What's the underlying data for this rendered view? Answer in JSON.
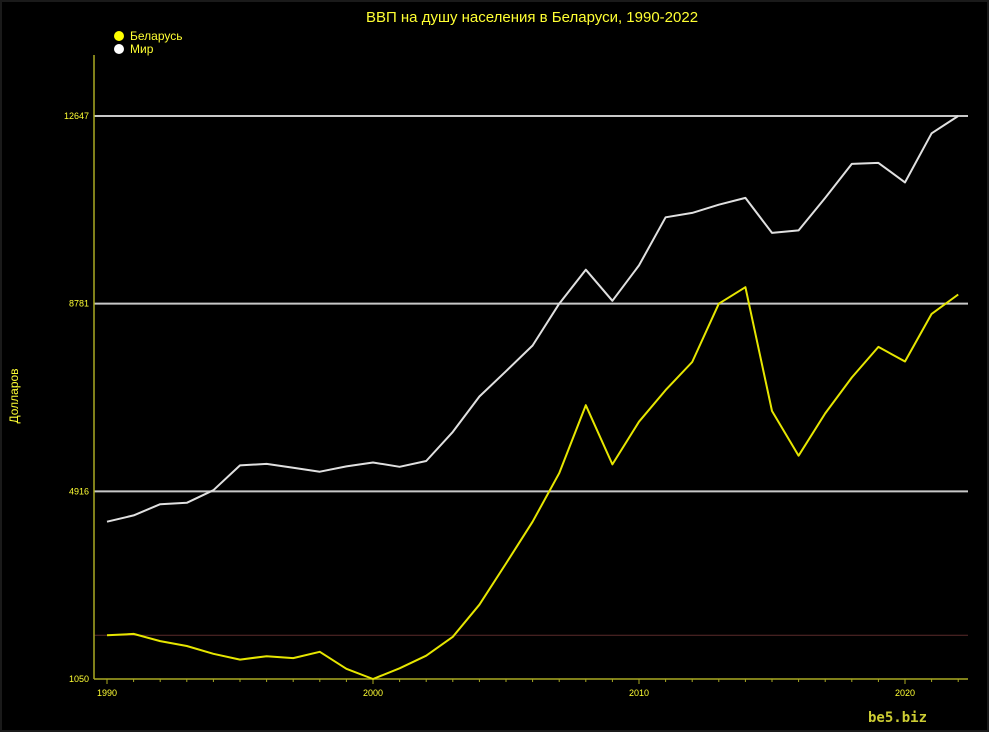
{
  "chart_data": {
    "type": "line",
    "title": "ВВП на душу населения в Беларуси, 1990-2022",
    "ylabel": "Долларов",
    "xlabel": "",
    "ylim": [
      1050,
      13900
    ],
    "xlim": [
      1990,
      2022.5
    ],
    "y_ticks": [
      1050,
      4916,
      8781,
      12647
    ],
    "x_ticks": [
      1990,
      2000,
      2010,
      2020
    ],
    "reference_line": 1950,
    "x": [
      1990,
      1991,
      1992,
      1993,
      1994,
      1995,
      1996,
      1997,
      1998,
      1999,
      2000,
      2001,
      2002,
      2003,
      2004,
      2005,
      2006,
      2007,
      2008,
      2009,
      2010,
      2011,
      2012,
      2013,
      2014,
      2015,
      2016,
      2017,
      2018,
      2019,
      2020,
      2021,
      2022
    ],
    "series": [
      {
        "name": "Беларусь",
        "color": "#e6e600",
        "values": [
          1950,
          1980,
          1830,
          1730,
          1570,
          1450,
          1520,
          1480,
          1610,
          1260,
          1050,
          1270,
          1530,
          1920,
          2580,
          3430,
          4290,
          5290,
          6690,
          5470,
          6350,
          7000,
          7580,
          8780,
          9120,
          6570,
          5650,
          6520,
          7260,
          7890,
          7590,
          8570,
          8970
        ]
      },
      {
        "name": "Мир",
        "color": "#e0e0e0",
        "values": [
          4290,
          4420,
          4650,
          4680,
          4940,
          5450,
          5480,
          5400,
          5320,
          5430,
          5510,
          5420,
          5540,
          6140,
          6870,
          7390,
          7920,
          8780,
          9480,
          8840,
          9570,
          10560,
          10650,
          10820,
          10960,
          10240,
          10290,
          10960,
          11660,
          11680,
          11280,
          12290,
          12647
        ]
      }
    ],
    "grid": true,
    "legend_position": "top-left"
  },
  "watermark": "be5.biz",
  "colors": {
    "background": "#000000",
    "text": "#ffff33",
    "axis": "#aaaa22",
    "gridline": "#c8c8c8",
    "reference_line": "#5a2a2a"
  }
}
